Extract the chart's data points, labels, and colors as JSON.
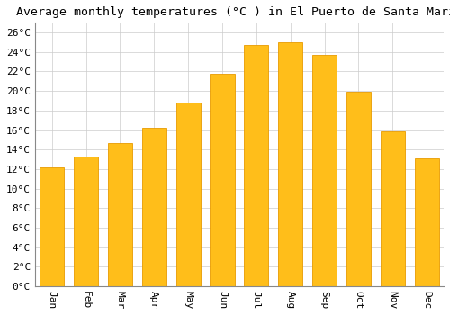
{
  "title": "Average monthly temperatures (°C ) in El Puerto de Santa María",
  "months": [
    "Jan",
    "Feb",
    "Mar",
    "Apr",
    "May",
    "Jun",
    "Jul",
    "Aug",
    "Sep",
    "Oct",
    "Nov",
    "Dec"
  ],
  "temperatures": [
    12.2,
    13.3,
    14.7,
    16.2,
    18.8,
    21.8,
    24.7,
    25.0,
    23.7,
    19.9,
    15.9,
    13.1
  ],
  "bar_color_face": "#FFBE1A",
  "bar_color_edge": "#E89B00",
  "background_color": "#FFFFFF",
  "grid_color": "#CCCCCC",
  "ylim": [
    0,
    27
  ],
  "yticks": [
    0,
    2,
    4,
    6,
    8,
    10,
    12,
    14,
    16,
    18,
    20,
    22,
    24,
    26
  ],
  "title_fontsize": 9.5,
  "tick_fontsize": 8,
  "font_family": "monospace",
  "bar_width": 0.72
}
